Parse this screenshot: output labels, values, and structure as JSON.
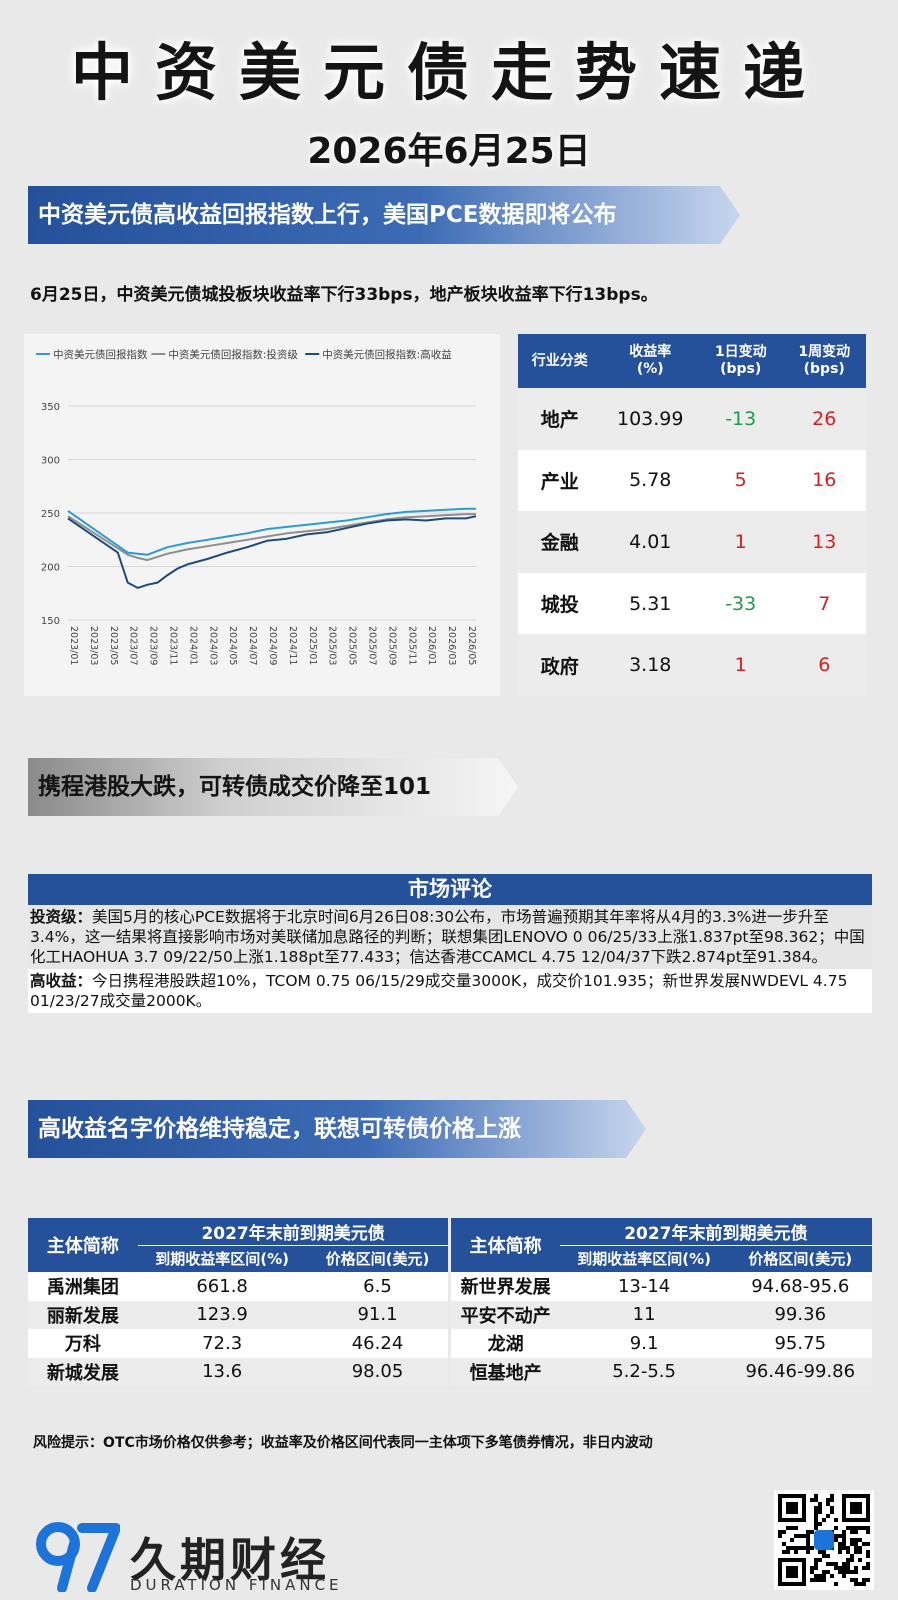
{
  "header": {
    "title": "中资美元债走势速递",
    "date": "2026年6月25日"
  },
  "sections": {
    "s1_title": "中资美元债高收益回报指数上行，美国PCE数据即将公布",
    "s1_summary": "6月25日，中资美元债城投板块收益率下行33bps，地产板块收益率下行13bps。",
    "s2_title": "携程港股大跌，可转债成交价降至101",
    "s3_title": "高收益名字价格维持稳定，联想可转债价格上涨"
  },
  "chart_data": {
    "type": "line",
    "legend": [
      "中资美元债回报指数",
      "中资美元债回报指数:投资级",
      "中资美元债回报指数:高收益"
    ],
    "legend_placement": "top",
    "colors": [
      "#2b9bd0",
      "#8e8e8e",
      "#1f4a7a"
    ],
    "ylim": [
      150,
      350
    ],
    "yticks": [
      150,
      200,
      250,
      300,
      350
    ],
    "xticks": [
      "2023/01",
      "2023/03",
      "2023/05",
      "2023/07",
      "2023/09",
      "2023/11",
      "2024/01",
      "2024/03",
      "2024/05",
      "2024/07",
      "2024/09",
      "2024/11",
      "2025/01",
      "2025/03",
      "2025/05",
      "2025/07",
      "2025/09",
      "2025/11",
      "2026/01",
      "2026/03",
      "2026/05"
    ],
    "grid": true,
    "series": [
      {
        "name": "中资美元债回报指数",
        "x": [
          "2023/01",
          "2023/07",
          "2023/08",
          "2023/09",
          "2023/11",
          "2024/01",
          "2024/03",
          "2024/05",
          "2024/07",
          "2024/09",
          "2024/11",
          "2025/01",
          "2025/03",
          "2025/05",
          "2025/07",
          "2025/09",
          "2025/11",
          "2026/01",
          "2026/03",
          "2026/05",
          "2026/06"
        ],
        "values": [
          252,
          213,
          212,
          211,
          218,
          222,
          225,
          228,
          231,
          235,
          237,
          239,
          241,
          243,
          246,
          249,
          251,
          252,
          253,
          254,
          254
        ]
      },
      {
        "name": "中资美元债回报指数:投资级",
        "x": [
          "2023/01",
          "2023/07",
          "2023/08",
          "2023/09",
          "2023/11",
          "2024/01",
          "2024/03",
          "2024/05",
          "2024/07",
          "2024/09",
          "2024/11",
          "2025/01",
          "2025/03",
          "2025/05",
          "2025/07",
          "2025/09",
          "2025/11",
          "2026/01",
          "2026/03",
          "2026/05",
          "2026/06"
        ],
        "values": [
          247,
          211,
          208,
          206,
          212,
          216,
          219,
          222,
          225,
          228,
          231,
          233,
          235,
          238,
          241,
          244,
          246,
          247,
          248,
          249,
          249
        ]
      },
      {
        "name": "中资美元债回报指数:高收益",
        "x": [
          "2023/01",
          "2023/06",
          "2023/07",
          "2023/08",
          "2023/09",
          "2023/10",
          "2023/11",
          "2023/12",
          "2024/01",
          "2024/03",
          "2024/05",
          "2024/07",
          "2024/09",
          "2024/11",
          "2025/01",
          "2025/03",
          "2025/05",
          "2025/07",
          "2025/09",
          "2025/11",
          "2026/01",
          "2026/03",
          "2026/05",
          "2026/06"
        ],
        "values": [
          245,
          213,
          185,
          180,
          183,
          185,
          192,
          198,
          202,
          207,
          213,
          218,
          224,
          226,
          230,
          232,
          236,
          240,
          243,
          244,
          243,
          245,
          245,
          247
        ]
      }
    ]
  },
  "sector_table": {
    "headers": [
      "行业分类",
      "收益率\n(%)",
      "1日变动\n(bps)",
      "1周变动\n(bps)"
    ],
    "rows": [
      {
        "name": "地产",
        "yield": "103.99",
        "d1": "-13",
        "w1": "26"
      },
      {
        "name": "产业",
        "yield": "5.78",
        "d1": "5",
        "w1": "16"
      },
      {
        "name": "金融",
        "yield": "4.01",
        "d1": "1",
        "w1": "13"
      },
      {
        "name": "城投",
        "yield": "5.31",
        "d1": "-33",
        "w1": "7"
      },
      {
        "name": "政府",
        "yield": "3.18",
        "d1": "1",
        "w1": "6"
      }
    ],
    "colors": {
      "negative": "#1e9a48",
      "positive": "#d62020"
    }
  },
  "market_comment": {
    "title": "市场评论",
    "ig_label": "投资级：",
    "ig_text": "美国5月的核心PCE数据将于北京时间6月26日08:30公布，市场普遍预期其年率将从4月的3.3%进一步升至3.4%，这一结果将直接影响市场对美联储加息路径的判断；联想集团LENOVO 0 06/25/33上涨1.837pt至98.362；中国化工HAOHUA 3.7 09/22/50上涨1.188pt至77.433；信达香港CCAMCL 4.75 12/04/37下跌2.874pt至91.384。",
    "hy_label": "高收益：",
    "hy_text": "今日携程港股跌超10%，TCOM 0.75 06/15/29成交量3000K，成交价101.935；新世界发展NWDEVL 4.75 01/23/27成交量2000K。"
  },
  "bond_table": {
    "entity_header": "主体简称",
    "group_header": "2027年末前到期美元债",
    "col_yield": "到期收益率区间(%)",
    "col_price": "价格区间(美元)",
    "left_rows": [
      {
        "name": "禹洲集团",
        "yield": "661.8",
        "price": "6.5"
      },
      {
        "name": "丽新发展",
        "yield": "123.9",
        "price": "91.1"
      },
      {
        "name": "万科",
        "yield": "72.3",
        "price": "46.24"
      },
      {
        "name": "新城发展",
        "yield": "13.6",
        "price": "98.05"
      }
    ],
    "right_rows": [
      {
        "name": "新世界发展",
        "yield": "13-14",
        "price": "94.68-95.6"
      },
      {
        "name": "平安不动产",
        "yield": "11",
        "price": "99.36"
      },
      {
        "name": "龙湖",
        "yield": "9.1",
        "price": "95.75"
      },
      {
        "name": "恒基地产",
        "yield": "5.2-5.5",
        "price": "96.46-99.86"
      }
    ]
  },
  "risk_note": "风险提示：OTC市场价格仅供参考；收益率及价格区间代表同一主体项下多笔债券情况，非日内波动",
  "footer": {
    "logo_cn": "久期财经",
    "logo_en": "DURATION FINANCE",
    "logo_icon": "duration-97-logo",
    "qr_icon": "qr-code"
  }
}
